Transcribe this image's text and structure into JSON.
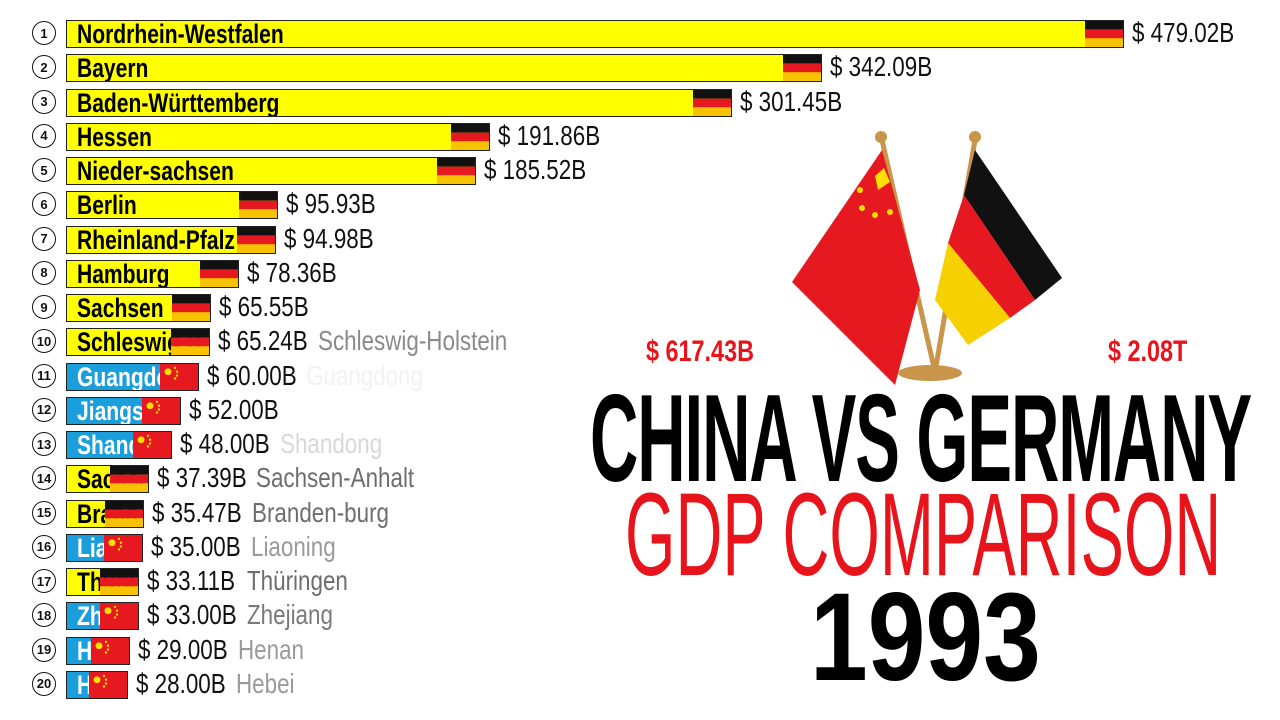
{
  "chart_data": {
    "type": "bar",
    "orientation": "horizontal",
    "unit": "USD billions",
    "year": "1993",
    "xlim": [
      0,
      479.02
    ],
    "rows": [
      {
        "rank": "1",
        "name": "Nordrhein-Westfalen",
        "value": 479.02,
        "label": "$ 479.02B",
        "country": "germany",
        "outside_name": ""
      },
      {
        "rank": "2",
        "name": "Bayern",
        "value": 342.09,
        "label": "$ 342.09B",
        "country": "germany",
        "outside_name": ""
      },
      {
        "rank": "3",
        "name": "Baden-Württemberg",
        "value": 301.45,
        "label": "$ 301.45B",
        "country": "germany",
        "outside_name": ""
      },
      {
        "rank": "4",
        "name": "Hessen",
        "value": 191.86,
        "label": "$ 191.86B",
        "country": "germany",
        "outside_name": ""
      },
      {
        "rank": "5",
        "name": "Nieder-sachsen",
        "value": 185.52,
        "label": "$ 185.52B",
        "country": "germany",
        "outside_name": ""
      },
      {
        "rank": "6",
        "name": "Berlin",
        "value": 95.93,
        "label": "$ 95.93B",
        "country": "germany",
        "outside_name": ""
      },
      {
        "rank": "7",
        "name": "Rheinland-Pfalz",
        "value": 94.98,
        "label": "$ 94.98B",
        "country": "germany",
        "outside_name": ""
      },
      {
        "rank": "8",
        "name": "Hamburg",
        "value": 78.36,
        "label": "$ 78.36B",
        "country": "germany",
        "outside_name": ""
      },
      {
        "rank": "9",
        "name": "Sachsen",
        "value": 65.55,
        "label": "$ 65.55B",
        "country": "germany",
        "outside_name": ""
      },
      {
        "rank": "10",
        "name": "Schleswig-Holstein",
        "value": 65.24,
        "label": "$ 65.24B",
        "country": "germany",
        "outside_name": "Schleswig-Holstein",
        "outside_color": "#8a8a8a"
      },
      {
        "rank": "11",
        "name": "Guangdong",
        "value": 60.0,
        "label": "$ 60.00B",
        "country": "china",
        "outside_name": "Guangdong",
        "outside_color": "#f2f2f2"
      },
      {
        "rank": "12",
        "name": "Jiangsu",
        "value": 52.0,
        "label": "$ 52.00B",
        "country": "china",
        "outside_name": ""
      },
      {
        "rank": "13",
        "name": "Shandong",
        "value": 48.0,
        "label": "$ 48.00B",
        "country": "china",
        "outside_name": "Shandong",
        "outside_color": "#d8d8d8"
      },
      {
        "rank": "14",
        "name": "Sachsen-Anhalt",
        "value": 37.39,
        "label": "$ 37.39B",
        "country": "germany",
        "outside_name": "Sachsen-Anhalt",
        "outside_color": "#6e6e6e"
      },
      {
        "rank": "15",
        "name": "Branden-burg",
        "value": 35.47,
        "label": "$ 35.47B",
        "country": "germany",
        "outside_name": "Branden-burg",
        "outside_color": "#6e6e6e"
      },
      {
        "rank": "16",
        "name": "Liaoning",
        "value": 35.0,
        "label": "$ 35.00B",
        "country": "china",
        "outside_name": "Liaoning",
        "outside_color": "#9a9a9a"
      },
      {
        "rank": "17",
        "name": "Thüringen",
        "value": 33.11,
        "label": "$ 33.11B",
        "country": "germany",
        "outside_name": "Thüringen",
        "outside_color": "#6e6e6e"
      },
      {
        "rank": "18",
        "name": "Zhejiang",
        "value": 33.0,
        "label": "$ 33.00B",
        "country": "china",
        "outside_name": "Zhejiang",
        "outside_color": "#7a7a7a"
      },
      {
        "rank": "19",
        "name": "Henan",
        "value": 29.0,
        "label": "$ 29.00B",
        "country": "china",
        "outside_name": "Henan",
        "outside_color": "#9a9a9a"
      },
      {
        "rank": "20",
        "name": "Hebei",
        "value": 28.0,
        "label": "$ 28.00B",
        "country": "china",
        "outside_name": "Hebei",
        "outside_color": "#9a9a9a"
      }
    ]
  },
  "colors": {
    "germany_bar": "#ffff00",
    "china_bar": "#1a9fdc",
    "accent_red": "#e8141b"
  },
  "totals": {
    "china": "$ 617.43B",
    "germany": "$ 2.08T"
  },
  "title": {
    "line1": "CHINA VS GERMANY",
    "line2": "GDP COMPARISON",
    "year": "1993"
  },
  "icons": {
    "center": "china-germany-desk-flags"
  }
}
